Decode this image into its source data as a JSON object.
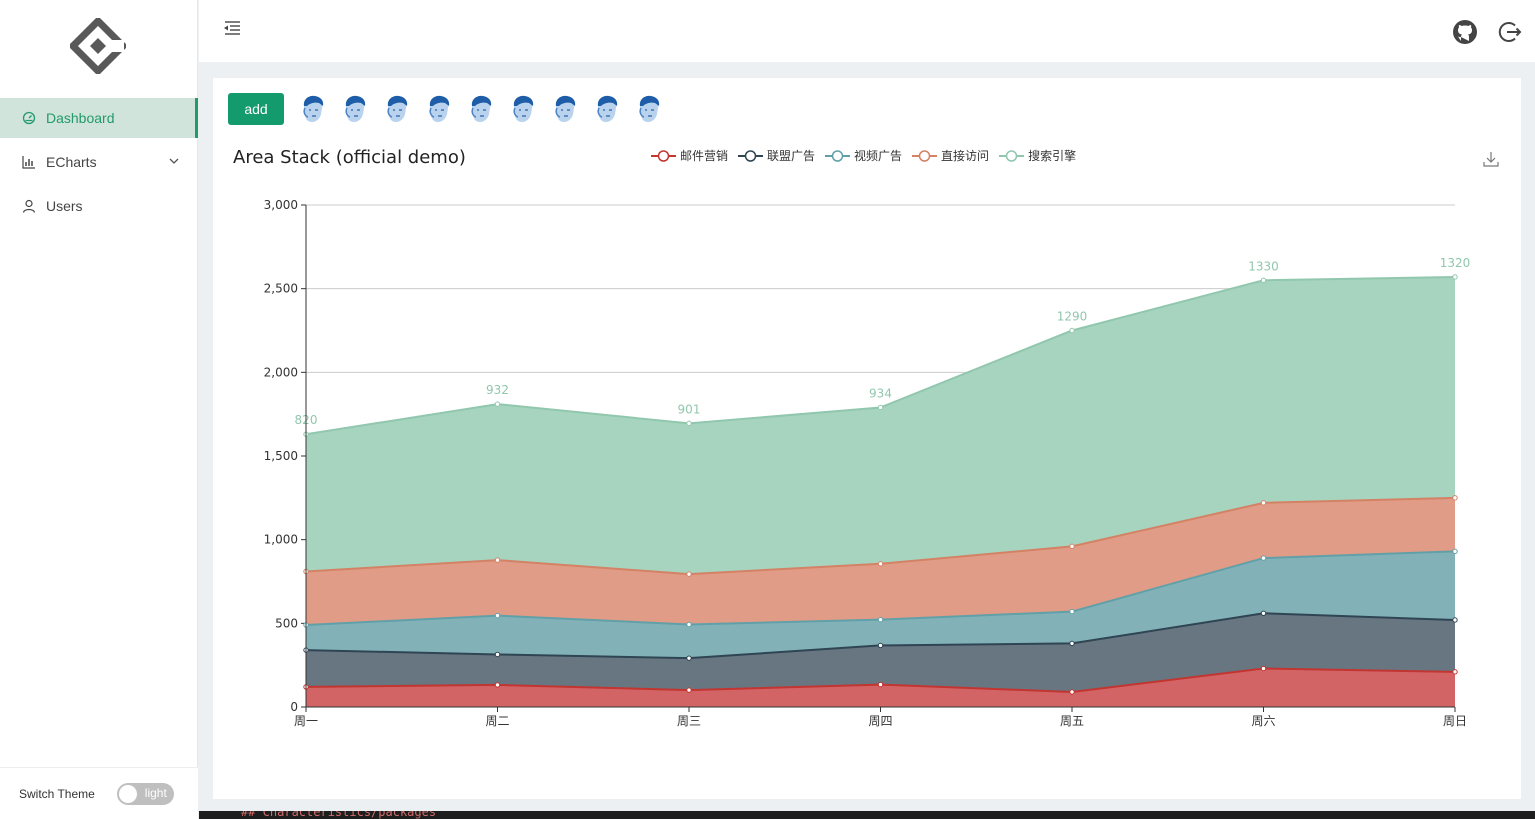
{
  "sidebar": {
    "items": [
      {
        "label": "Dashboard",
        "icon": "dashboard-icon",
        "active": true
      },
      {
        "label": "ECharts",
        "icon": "bar-chart-icon",
        "active": false,
        "expandable": true
      },
      {
        "label": "Users",
        "icon": "user-icon",
        "active": false
      }
    ],
    "switch_theme_label": "Switch Theme",
    "theme_toggle_label": "light"
  },
  "toolbar": {
    "add_label": "add",
    "avatar_count": 9
  },
  "chart_data": {
    "type": "area",
    "title": "Area Stack (official demo)",
    "categories": [
      "周一",
      "周二",
      "周三",
      "周四",
      "周五",
      "周六",
      "周日"
    ],
    "stacked": true,
    "ylim": [
      0,
      3000
    ],
    "yticks": [
      "0",
      "500",
      "1,000",
      "1,500",
      "2,000",
      "2,500",
      "3,000"
    ],
    "grid": true,
    "legend_position": "top-center",
    "series": [
      {
        "name": "邮件营销",
        "values": [
          120,
          132,
          101,
          134,
          90,
          230,
          210
        ],
        "color": "#c23531",
        "fill": "#d36466"
      },
      {
        "name": "联盟广告",
        "values": [
          220,
          182,
          191,
          234,
          290,
          330,
          310
        ],
        "color": "#2f4554",
        "fill": "#677680"
      },
      {
        "name": "视频广告",
        "values": [
          150,
          232,
          201,
          154,
          190,
          330,
          410
        ],
        "color": "#61a0a8",
        "fill": "#82b2b8"
      },
      {
        "name": "直接访问",
        "values": [
          320,
          332,
          301,
          334,
          390,
          330,
          320
        ],
        "color": "#d48265",
        "fill": "#e09c86"
      },
      {
        "name": "搜索引擎",
        "values": [
          820,
          932,
          901,
          934,
          1290,
          1330,
          1320
        ],
        "color": "#91c7ae",
        "fill": "#a7d4bf",
        "show_labels": true
      }
    ]
  },
  "bottom_text": "## Characteristics/packages"
}
